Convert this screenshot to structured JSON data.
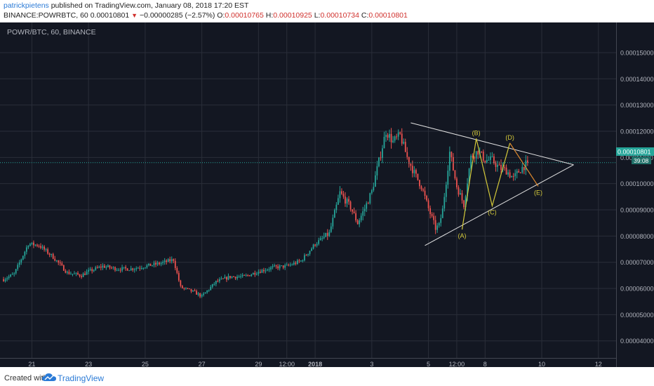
{
  "header": {
    "author": "patrickpietens",
    "published": "published on TradingView.com, January 08, 2018 17:20 EST",
    "symbol": "BINANCE:POWRBTC, 60",
    "last": "0.00010801",
    "change_arrow": "▼",
    "change": "−0.00000285 (−2.57%)",
    "o_label": "O:",
    "o_value": "0.00010765",
    "h_label": "H:",
    "h_value": "0.00010925",
    "l_label": "L:",
    "l_value": "0.00010734",
    "c_label": "C:",
    "c_value": "0.00010801"
  },
  "chart_title": "POWR/BTC, 60, BINANCE",
  "price_badge": "0.00010801",
  "time_badge": "39:08",
  "footer": {
    "created_with": "Created with",
    "brand": "TradingView"
  },
  "colors": {
    "background": "#131722",
    "grid": "#2a2e39",
    "up": "#26a69a",
    "down": "#ef5350",
    "pattern": "#e0e0e0",
    "waves_yellow": "#d4c93a",
    "waves_orange": "#e08a2e",
    "price_line": "#26a69a",
    "axis_text": "#b2b5be"
  },
  "chart_data": {
    "type": "candlestick",
    "title": "POWR/BTC, 60, BINANCE",
    "y_ticks": [
      "0.00015000",
      "0.00014000",
      "0.00013000",
      "0.00012000",
      "0.00011000",
      "0.00010000",
      "0.00009000",
      "0.00008000",
      "0.00007000",
      "0.00006000",
      "0.00005000",
      "0.00004000"
    ],
    "y_tick_values": [
      0.00015,
      0.00014,
      0.00013,
      0.00012,
      0.00011,
      0.0001,
      9e-05,
      8e-05,
      7e-05,
      6e-05,
      5e-05,
      4e-05
    ],
    "ylim": [
      3.35e-05,
      0.0001615
    ],
    "x_ticks": [
      "21",
      "23",
      "25",
      "27",
      "29",
      "12:00",
      "2018",
      "3",
      "5",
      "12:00",
      "8",
      "10",
      "12"
    ],
    "x_tick_index": [
      16,
      48,
      80,
      112,
      144,
      160,
      176,
      208,
      240,
      256,
      272,
      304,
      336
    ],
    "x_range": [
      -2,
      346
    ],
    "last_price": 0.00010801,
    "close_path_index": [
      0,
      6,
      14,
      20,
      28,
      36,
      44,
      48,
      56,
      64,
      72,
      80,
      88,
      96,
      100,
      104,
      108,
      112,
      120,
      128,
      136,
      144,
      152,
      160,
      168,
      176,
      184,
      190,
      196,
      200,
      204,
      208,
      216,
      220,
      224,
      228,
      232,
      236,
      240,
      244,
      246,
      248,
      252,
      256,
      260,
      264,
      268,
      272,
      276,
      280,
      284,
      288,
      292,
      296
    ],
    "close_path_value": [
      6.35e-05,
      6.55e-05,
      7.7e-05,
      7.65e-05,
      7.2e-05,
      6.6e-05,
      6.5e-05,
      6.65e-05,
      6.85e-05,
      6.75e-05,
      6.75e-05,
      6.85e-05,
      6.95e-05,
      7.1e-05,
      6.05e-05,
      5.95e-05,
      5.85e-05,
      5.7e-05,
      6.25e-05,
      6.45e-05,
      6.45e-05,
      6.65e-05,
      6.8e-05,
      6.85e-05,
      7.05e-05,
      7.7e-05,
      8.1e-05,
      9.65e-05,
      9.1e-05,
      8.5e-05,
      9.05e-05,
      9.7e-05,
      0.00012,
      0.000116,
      0.0001185,
      0.00011,
      0.000104,
      9.9e-05,
      9.05e-05,
      8.3e-05,
      8.4e-05,
      9e-05,
      0.000112,
      9.9e-05,
      9.2e-05,
      0.00011,
      0.0001125,
      0.000109,
      0.000109,
      0.000106,
      0.000105,
      0.000102,
      0.0001055,
      0.000108
    ],
    "waves": {
      "labels": [
        "(A)",
        "(B)",
        "(C)",
        "(D)",
        "(E)"
      ],
      "points": [
        [
          259,
          8.25e-05
        ],
        [
          267,
          0.0001172
        ],
        [
          276,
          9.15e-05
        ],
        [
          286,
          0.0001155
        ],
        [
          302,
          9.9e-05
        ]
      ]
    },
    "triangle": {
      "upper": [
        [
          230,
          0.0001232
        ],
        [
          322,
          0.0001072
        ]
      ],
      "lower": [
        [
          238,
          7.64e-05
        ],
        [
          322,
          0.0001072
        ]
      ]
    }
  }
}
